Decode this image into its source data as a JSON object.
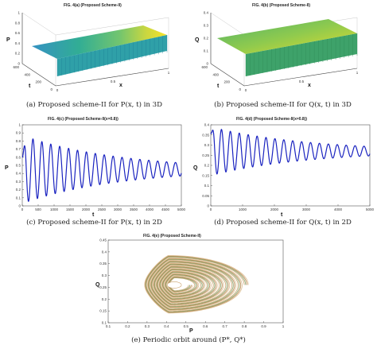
{
  "chart_data": [
    {
      "id": "4a",
      "type": "surface3d",
      "title": "FIG. 4(a)     (Proposed Scheme-II)",
      "zlabel": "P",
      "ylabel": "t",
      "xlabel": "x",
      "zticks": [
        "0",
        "0.2",
        "0.4",
        "0.6",
        "0.8",
        "1"
      ],
      "yticks": [
        "0",
        "200",
        "400",
        "600"
      ],
      "xticks": [
        "0",
        "0.5",
        "1"
      ],
      "caption": "(a) Proposed scheme-II for P(x, t) in 3D"
    },
    {
      "id": "4b",
      "type": "surface3d",
      "title": "FIG. 4(b)     (Proposed Scheme-II)",
      "zlabel": "Q",
      "ylabel": "t",
      "xlabel": "x",
      "zticks": [
        "0",
        "0.1",
        "0.2",
        "0.3",
        "0.4"
      ],
      "yticks": [
        "0",
        "200",
        "400",
        "600"
      ],
      "xticks": [
        "0",
        "0.5",
        "1"
      ],
      "caption": "(b) Proposed scheme-II for Q(x, t) in 3D"
    },
    {
      "id": "4c",
      "type": "line",
      "title": "FIG. 4(c)     (Proposed Scheme-II(x=0.8))",
      "xlabel": "t",
      "ylabel": "P",
      "xlim": [
        0,
        5000
      ],
      "ylim": [
        0,
        1
      ],
      "xticks": [
        "0",
        "500",
        "1000",
        "1500",
        "2000",
        "2500",
        "3000",
        "3500",
        "4000",
        "4500",
        "5000"
      ],
      "yticks": [
        "0",
        "0.1",
        "0.2",
        "0.3",
        "0.4",
        "0.5",
        "0.6",
        "0.7",
        "0.8",
        "0.9",
        "1"
      ],
      "series": [
        {
          "start": 0.6,
          "equilibrium": 0.45,
          "amplitude": 0.42,
          "decay": 0.00033,
          "period": 280,
          "color": "#1a23c0"
        }
      ],
      "caption": "(c) Proposed scheme-II for P(x, t) in 2D"
    },
    {
      "id": "4d",
      "type": "line",
      "title": "FIG. 4(d)     (Proposed Scheme-II(x=0.8))",
      "xlabel": "t",
      "ylabel": "Q",
      "xlim": [
        0,
        5000
      ],
      "ylim": [
        0,
        0.4
      ],
      "xticks": [
        "0",
        "1000",
        "2000",
        "3000",
        "4000",
        "5000"
      ],
      "yticks": [
        "0",
        "0.05",
        "0.1",
        "0.15",
        "0.2",
        "0.25",
        "0.3",
        "0.35",
        "0.4"
      ],
      "series": [
        {
          "start": 0.36,
          "equilibrium": 0.27,
          "amplitude": 0.12,
          "decay": 0.00033,
          "period": 280,
          "color": "#1a23c0"
        }
      ],
      "caption": "(d) Proposed scheme-II for Q(x, t) in 2D"
    },
    {
      "id": "4e",
      "type": "phase",
      "title": "FIG. 4(e)     (Proposed Scheme-II)",
      "xlabel": "P",
      "ylabel": "Q",
      "xlim": [
        0.1,
        1
      ],
      "ylim": [
        0.1,
        0.45
      ],
      "xticks": [
        "0.1",
        "0.2",
        "0.3",
        "0.4",
        "0.5",
        "0.6",
        "0.7",
        "0.8",
        "0.9",
        "1"
      ],
      "yticks": [
        "0.1",
        "0.15",
        "0.2",
        "0.25",
        "0.3",
        "0.35",
        "0.4",
        "0.45"
      ],
      "equilibrium": {
        "P": 0.45,
        "Q": 0.26
      },
      "colors": [
        "#c8a06a",
        "#7a9a5a",
        "#b07a40",
        "#d8b888"
      ],
      "caption": "(e) Periodic orbit around (P*, Q*)"
    }
  ]
}
